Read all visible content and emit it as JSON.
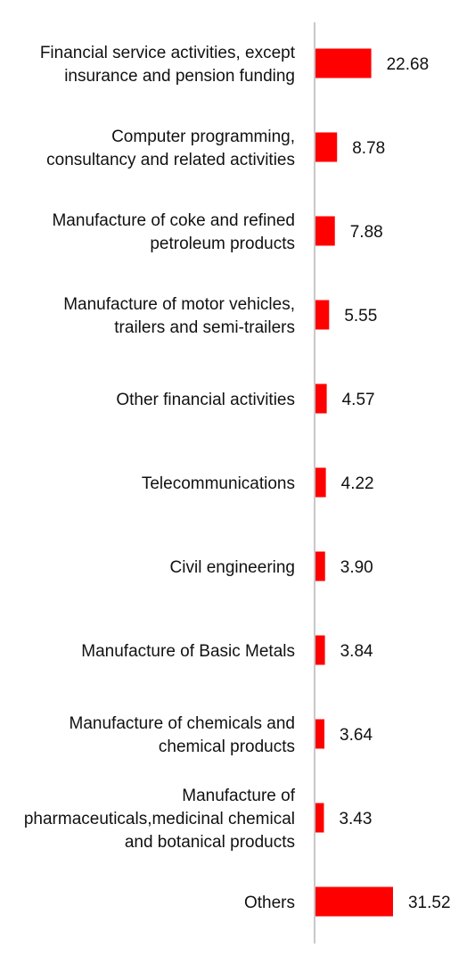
{
  "chart_data": {
    "type": "bar",
    "orientation": "horizontal",
    "title": "",
    "xlabel": "",
    "ylabel": "",
    "legend": "none",
    "grid": false,
    "bar_color": "#ff0000",
    "axis_color": "#c8c8c8",
    "xlim": [
      0,
      35
    ],
    "categories": [
      "Financial service activities, except insurance and pension funding",
      "Computer programming, consultancy and related activities",
      "Manufacture of coke and refined petroleum products",
      "Manufacture of motor vehicles, trailers and semi-trailers",
      "Other financial activities",
      "Telecommunications",
      "Civil engineering",
      "Manufacture of Basic Metals",
      "Manufacture of chemicals and chemical products",
      "Manufacture of pharmaceuticals,medicinal chemical and botanical products",
      "Others"
    ],
    "values": [
      22.68,
      8.78,
      7.88,
      5.55,
      4.57,
      4.22,
      3.9,
      3.84,
      3.64,
      3.43,
      31.52
    ],
    "value_labels": [
      "22.68",
      "8.78",
      "7.88",
      "5.55",
      "4.57",
      "4.22",
      "3.90",
      "3.84",
      "3.64",
      "3.43",
      "31.52"
    ]
  }
}
